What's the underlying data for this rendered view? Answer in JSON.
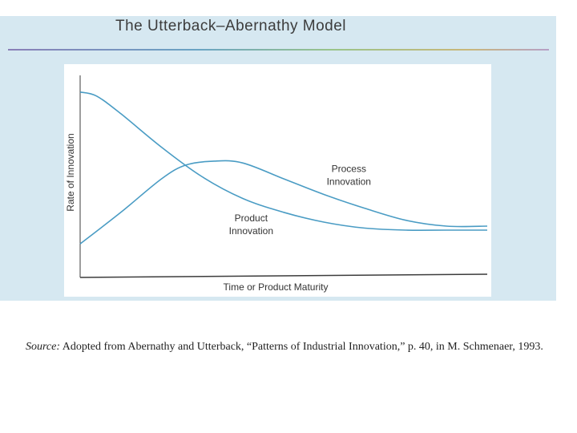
{
  "slide": {
    "title": "The Utterback–Abernathy Model",
    "source_label": "Source:",
    "source_text": "Adopted from Abernathy and Utterback, “Patterns of Industrial Innovation,” p. 40, in M. Schmenaer, 1993."
  },
  "colors": {
    "panel_bg": "#d6e8f1",
    "curve": "#4a9cc4",
    "axis": "#3c3c3c",
    "text": "#333333"
  },
  "chart_data": {
    "type": "line",
    "title": "",
    "xlabel": "Time or Product Maturity",
    "ylabel": "Rate of Innovation",
    "xlim": [
      0,
      10
    ],
    "ylim": [
      0,
      10
    ],
    "grid": false,
    "legend": "none",
    "series": [
      {
        "name": "Product Innovation",
        "x": [
          0,
          0.4,
          1,
          2,
          3,
          4,
          5,
          6,
          7,
          8,
          9,
          10
        ],
        "y": [
          9.4,
          9.2,
          8.3,
          6.6,
          5.1,
          4.0,
          3.3,
          2.8,
          2.5,
          2.4,
          2.4,
          2.4
        ]
      },
      {
        "name": "Process Innovation",
        "x": [
          0,
          1,
          2,
          2.6,
          3.3,
          4,
          5,
          6,
          7,
          8,
          9,
          10
        ],
        "y": [
          1.7,
          3.3,
          5.0,
          5.7,
          5.9,
          5.8,
          5.0,
          4.2,
          3.5,
          2.9,
          2.6,
          2.6
        ]
      }
    ],
    "annotations": [
      {
        "text_lines": [
          "Process",
          "Innovation"
        ],
        "x": 6.6,
        "y": 5.1
      },
      {
        "text_lines": [
          "Product",
          "Innovation"
        ],
        "x": 4.2,
        "y": 2.6
      }
    ]
  }
}
